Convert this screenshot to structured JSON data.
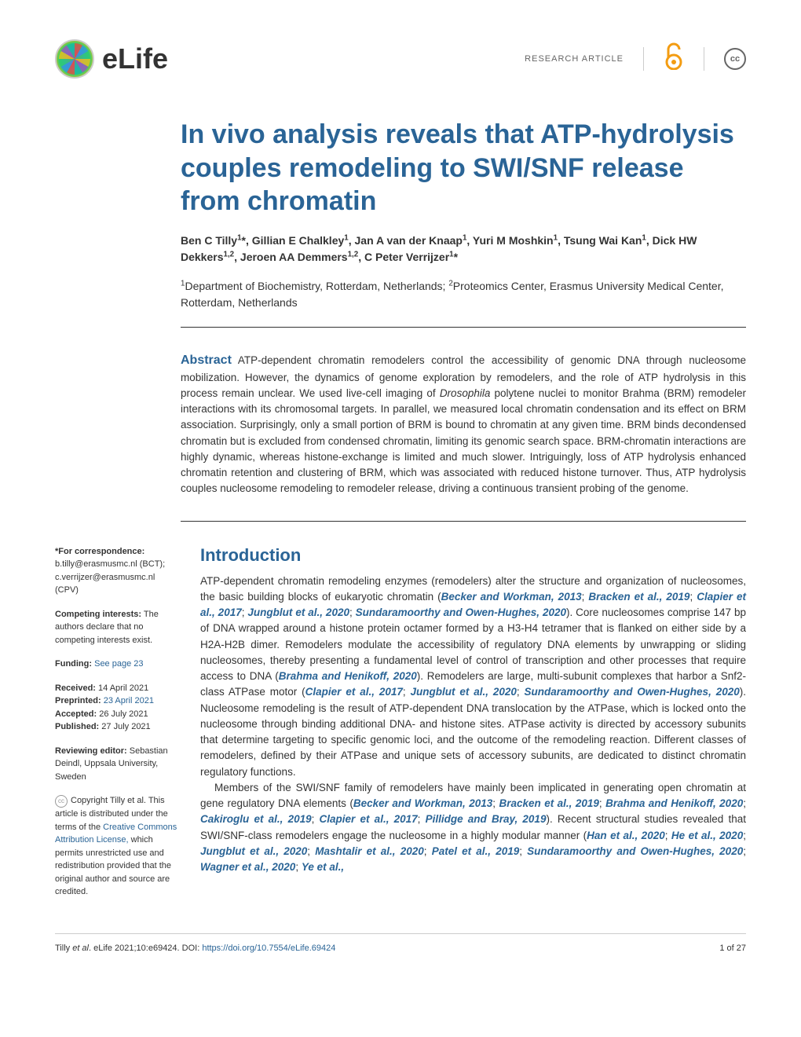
{
  "header": {
    "logo_text": "eLife",
    "article_type": "RESEARCH ARTICLE",
    "oa_symbol": "∂",
    "cc_text": "cc"
  },
  "title": "In vivo analysis reveals that ATP-hydrolysis couples remodeling to SWI/SNF release from chromatin",
  "authors_html": "Ben C Tilly<sup>1</sup>*, Gillian E Chalkley<sup>1</sup>, Jan A van der Knaap<sup>1</sup>, Yuri M Moshkin<sup>1</sup>, Tsung Wai Kan<sup>1</sup>, Dick HW Dekkers<sup>1,2</sup>, Jeroen AA Demmers<sup>1,2</sup>, C Peter Verrijzer<sup>1</sup>*",
  "affiliations_html": "<sup>1</sup>Department of Biochemistry, Rotterdam, Netherlands; <sup>2</sup>Proteomics Center, Erasmus University Medical Center, Rotterdam, Netherlands",
  "abstract": {
    "label": "Abstract",
    "text": "ATP-dependent chromatin remodelers control the accessibility of genomic DNA through nucleosome mobilization. However, the dynamics of genome exploration by remodelers, and the role of ATP hydrolysis in this process remain unclear. We used live-cell imaging of Drosophila polytene nuclei to monitor Brahma (BRM) remodeler interactions with its chromosomal targets. In parallel, we measured local chromatin condensation and its effect on BRM association. Surprisingly, only a small portion of BRM is bound to chromatin at any given time. BRM binds decondensed chromatin but is excluded from condensed chromatin, limiting its genomic search space. BRM-chromatin interactions are highly dynamic, whereas histone-exchange is limited and much slower. Intriguingly, loss of ATP hydrolysis enhanced chromatin retention and clustering of BRM, which was associated with reduced histone turnover. Thus, ATP hydrolysis couples nucleosome remodeling to remodeler release, driving a continuous transient probing of the genome."
  },
  "sidebar": {
    "correspondence_label": "*For correspondence:",
    "correspondence_1": "b.tilly@erasmusmc.nl (BCT);",
    "correspondence_2": "c.verrijzer@erasmusmc.nl (CPV)",
    "competing_label": "Competing interests:",
    "competing_text": " The authors declare that no competing interests exist.",
    "funding_label": "Funding:",
    "funding_link": " See page 23",
    "received_label": "Received:",
    "received_date": " 14 April 2021",
    "preprinted_label": "Preprinted:",
    "preprinted_date": " 23 April 2021",
    "accepted_label": "Accepted:",
    "accepted_date": " 26 July 2021",
    "published_label": "Published:",
    "published_date": " 27 July 2021",
    "reviewing_label": "Reviewing editor:",
    "reviewing_text": " Sebastian Deindl, Uppsala University, Sweden",
    "copyright_text_1": "Copyright Tilly et al. This article is distributed under the terms of the ",
    "copyright_link": "Creative Commons Attribution License,",
    "copyright_text_2": " which permits unrestricted use and redistribution provided that the original author and source are credited."
  },
  "introduction": {
    "heading": "Introduction",
    "paragraphs_html": [
      "ATP-dependent chromatin remodeling enzymes (remodelers) alter the structure and organization of nucleosomes, the basic building blocks of eukaryotic chromatin (<span class='citation'>Becker and Workman, 2013</span>; <span class='citation'>Bracken et al., 2019</span>; <span class='citation'>Clapier et al., 2017</span>; <span class='citation'>Jungblut et al., 2020</span>; <span class='citation'>Sundaramoorthy and Owen-Hughes, 2020</span>). Core nucleosomes comprise 147 bp of DNA wrapped around a histone protein octamer formed by a H3-H4 tetramer that is flanked on either side by a H2A-H2B dimer. Remodelers modulate the accessibility of regulatory DNA elements by unwrapping or sliding nucleosomes, thereby presenting a fundamental level of control of transcription and other processes that require access to DNA (<span class='citation'>Brahma and Henikoff, 2020</span>). Remodelers are large, multi-subunit complexes that harbor a Snf2-class ATPase motor (<span class='citation'>Clapier et al., 2017</span>; <span class='citation'>Jungblut et al., 2020</span>; <span class='citation'>Sundaramoorthy and Owen-Hughes, 2020</span>). Nucleosome remodeling is the result of ATP-dependent DNA translocation by the ATPase, which is locked onto the nucleosome through binding additional DNA- and histone sites. ATPase activity is directed by accessory subunits that determine targeting to specific genomic loci, and the outcome of the remodeling reaction. Different classes of remodelers, defined by their ATPase and unique sets of accessory subunits, are dedicated to distinct chromatin regulatory functions.",
      "Members of the SWI/SNF family of remodelers have mainly been implicated in generating open chromatin at gene regulatory DNA elements (<span class='citation'>Becker and Workman, 2013</span>; <span class='citation'>Bracken et al., 2019</span>; <span class='citation'>Brahma and Henikoff, 2020</span>; <span class='citation'>Cakiroglu et al., 2019</span>; <span class='citation'>Clapier et al., 2017</span>; <span class='citation'>Pillidge and Bray, 2019</span>). Recent structural studies revealed that SWI/SNF-class remodelers engage the nucleosome in a highly modular manner (<span class='citation'>Han et al., 2020</span>; <span class='citation'>He et al., 2020</span>; <span class='citation'>Jungblut et al., 2020</span>; <span class='citation'>Mashtalir et al., 2020</span>; <span class='citation'>Patel et al., 2019</span>; <span class='citation'>Sundaramoorthy and Owen-Hughes, 2020</span>; <span class='citation'>Wagner et al., 2020</span>; <span class='citation'>Ye et al.,</span>"
    ]
  },
  "footer": {
    "citation_prefix": "Tilly ",
    "citation_italic": "et al",
    "citation_mid": ". eLife 2021;10:e69424. DOI: ",
    "doi_link": "https://doi.org/10.7554/eLife.69424",
    "page_number": "1 of 27"
  },
  "colors": {
    "primary": "#2a6496",
    "text": "#333333",
    "link": "#2a6496",
    "oa_orange": "#f39c12"
  }
}
